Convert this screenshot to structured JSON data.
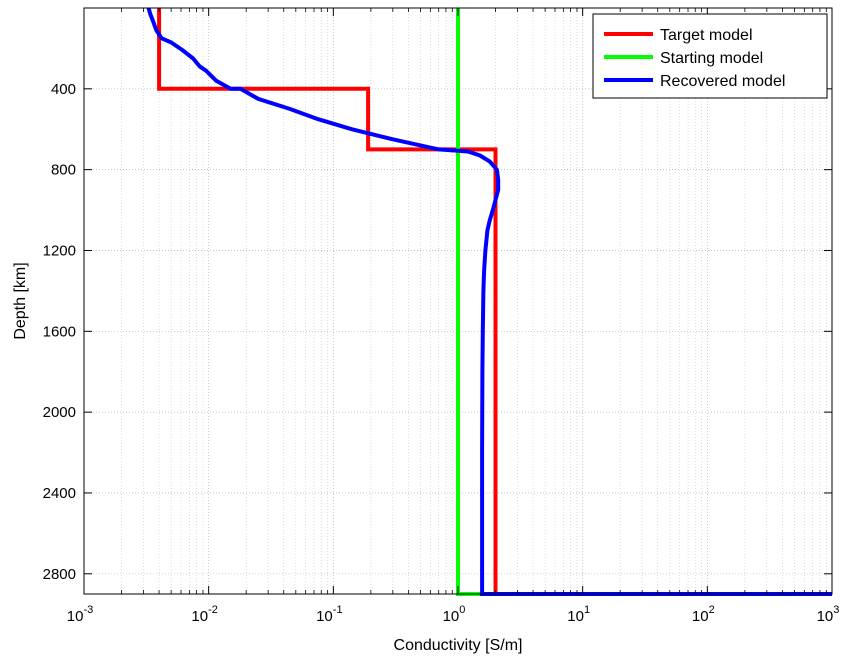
{
  "chart_data": {
    "type": "line",
    "xlabel": "Conductivity [S/m]",
    "ylabel": "Depth [km]",
    "xscale": "log",
    "xlim": [
      0.001,
      1000
    ],
    "ylim": [
      0,
      2900
    ],
    "y_inverted": true,
    "x_tick_base": "10",
    "x_tick_exponents": [
      "-3",
      "-2",
      "-1",
      "0",
      "1",
      "2",
      "3"
    ],
    "y_tick_labels": [
      "400",
      "800",
      "1200",
      "1600",
      "2000",
      "2400",
      "2800"
    ],
    "y_ticks": [
      400,
      800,
      1200,
      1600,
      2000,
      2400,
      2800
    ],
    "grid": true,
    "legend_position": "top-right",
    "series": [
      {
        "name": "Target model",
        "color": "#ff0000",
        "x": [
          0.004,
          0.004,
          0.19,
          0.19,
          2.0,
          2.0,
          1000
        ],
        "y": [
          0,
          400,
          400,
          700,
          700,
          2900,
          2900
        ]
      },
      {
        "name": "Starting model",
        "color": "#00ff00",
        "x": [
          1.0,
          1.0,
          1000
        ],
        "y": [
          0,
          2900,
          2900
        ]
      },
      {
        "name": "Recovered model",
        "color": "#0000ff",
        "x": [
          0.0033,
          0.0034,
          0.0036,
          0.0038,
          0.0042,
          0.005,
          0.0062,
          0.0075,
          0.0085,
          0.0095,
          0.0115,
          0.015,
          0.018,
          0.025,
          0.045,
          0.075,
          0.14,
          0.3,
          0.7,
          1.2,
          1.5,
          1.8,
          2.05,
          2.1,
          2.1,
          2.0,
          1.9,
          1.8,
          1.72,
          1.66,
          1.62,
          1.6,
          1.58,
          1.57,
          1.56,
          1.56,
          1000
        ],
        "y": [
          0,
          30,
          70,
          110,
          150,
          170,
          210,
          250,
          290,
          310,
          360,
          400,
          400,
          450,
          500,
          550,
          600,
          650,
          700,
          710,
          730,
          760,
          800,
          850,
          900,
          950,
          1000,
          1050,
          1100,
          1200,
          1300,
          1400,
          1600,
          1800,
          2200,
          2900,
          2900
        ]
      }
    ]
  }
}
